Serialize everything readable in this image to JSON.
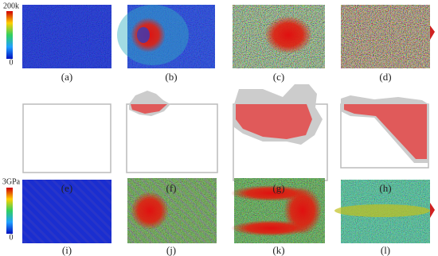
{
  "colorbars": [
    {
      "max": "200k",
      "min": "0"
    },
    {
      "max": "3GPa",
      "min": "0"
    }
  ],
  "panels": [
    "(a)",
    "(b)",
    "(c)",
    "(d)",
    "(e)",
    "(f)",
    "(g)",
    "(h)",
    "(i)",
    "(j)",
    "(k)",
    "(l)"
  ]
}
